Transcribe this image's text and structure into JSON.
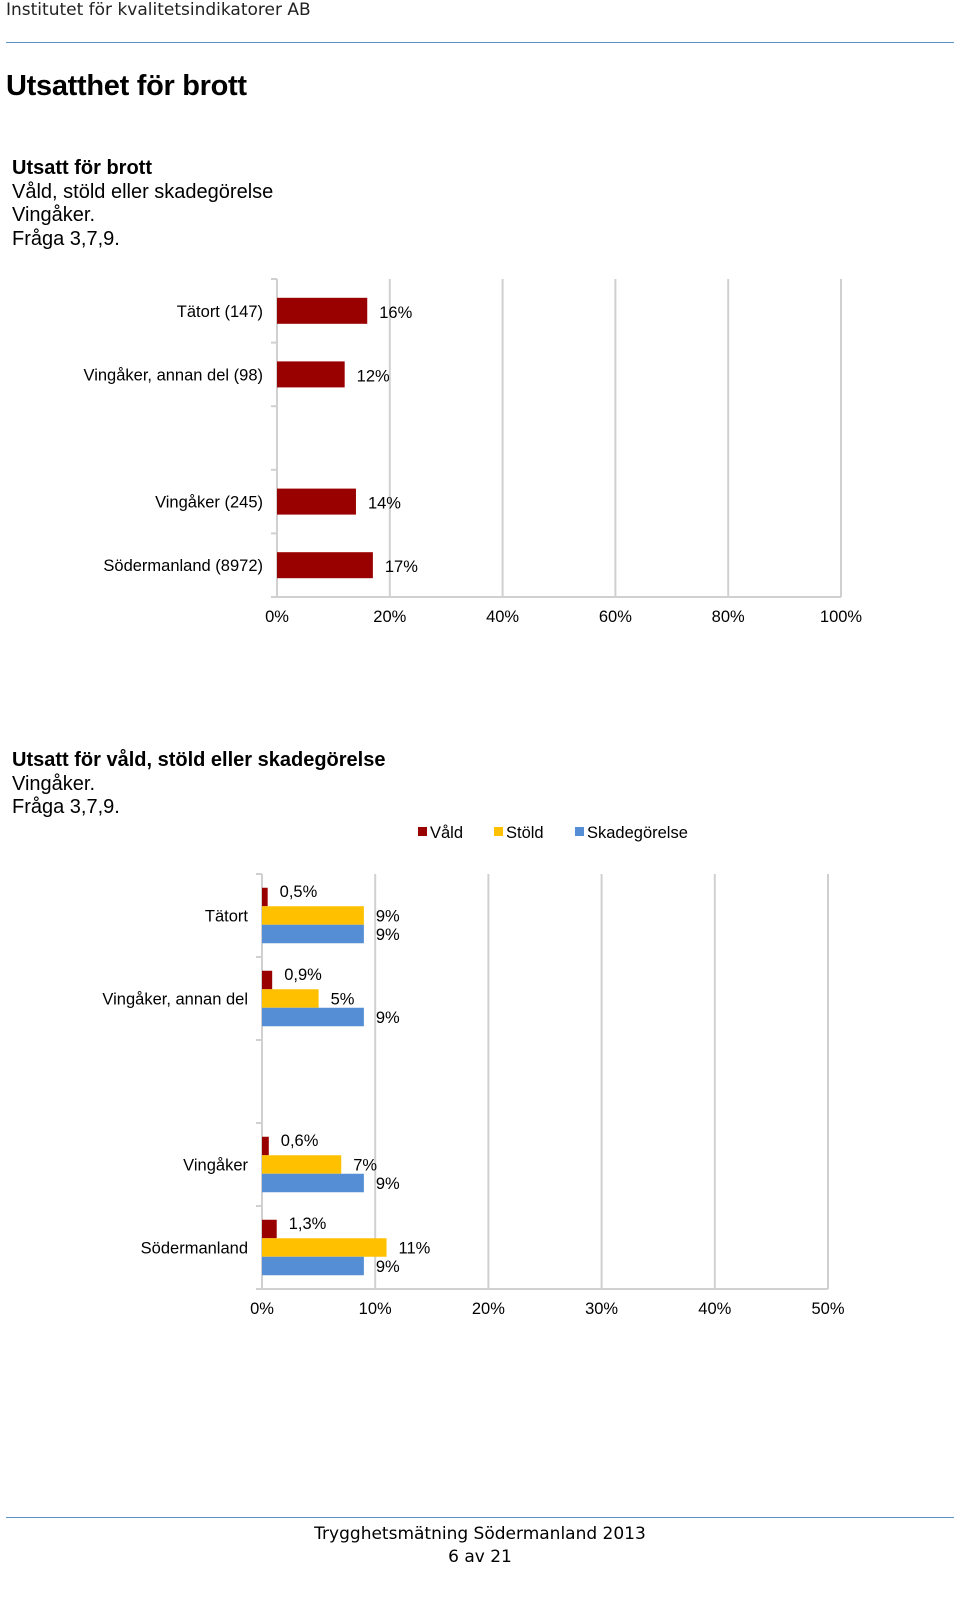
{
  "header": {
    "org": "Institutet för kvalitetsindikatorer AB"
  },
  "page_title": "Utsatthet för brott",
  "charts": [
    {
      "title_lines": [
        "Utsatt för brott",
        "Våld, stöld eller skadegörelse",
        "Vingåker.",
        "Fråga 3,7,9."
      ]
    },
    {
      "title_lines": [
        "Utsatt för våld, stöld eller skadegörelse",
        "Vingåker.",
        "Fråga 3,7,9."
      ]
    }
  ],
  "chart_data": [
    {
      "type": "bar",
      "orientation": "horizontal",
      "categories": [
        "Tätort (147)",
        "Vingåker, annan del (98)",
        "",
        "Vingåker (245)",
        "Södermanland (8972)"
      ],
      "values": [
        16,
        12,
        null,
        14,
        17
      ],
      "data_labels": [
        "16%",
        "12%",
        "",
        "14%",
        "17%"
      ],
      "xlim": [
        0,
        100
      ],
      "x_ticks": [
        "0%",
        "20%",
        "40%",
        "60%",
        "80%",
        "100%"
      ],
      "grid": true,
      "colors": [
        "#990000"
      ]
    },
    {
      "type": "bar",
      "orientation": "horizontal",
      "categories": [
        "Tätort",
        "Vingåker, annan del",
        "",
        "Vingåker",
        "Södermanland"
      ],
      "series": [
        {
          "name": "Våld",
          "color": "#990000",
          "values": [
            0.5,
            0.9,
            null,
            0.6,
            1.3
          ],
          "labels": [
            "0,5%",
            "0,9%",
            "",
            "0,6%",
            "1,3%"
          ]
        },
        {
          "name": "Stöld",
          "color": "#ffc000",
          "values": [
            9,
            5,
            null,
            7,
            11
          ],
          "labels": [
            "9%",
            "5%",
            "",
            "7%",
            "11%"
          ]
        },
        {
          "name": "Skadegörelse",
          "color": "#558ed5",
          "values": [
            9,
            9,
            null,
            9,
            9
          ],
          "labels": [
            "9%",
            "9%",
            "",
            "9%",
            "9%"
          ]
        }
      ],
      "xlim": [
        0,
        50
      ],
      "x_ticks": [
        "0%",
        "10%",
        "20%",
        "30%",
        "40%",
        "50%"
      ],
      "legend_position": "top-right",
      "grid": true
    }
  ],
  "footer": {
    "title": "Trygghetsmätning Södermanland 2013",
    "page": "6 av 21"
  }
}
